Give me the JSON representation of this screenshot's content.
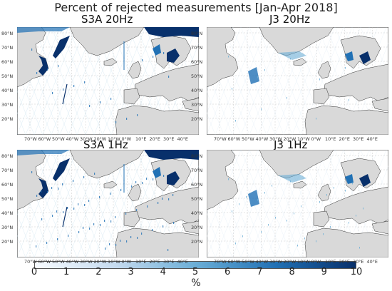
{
  "title": "Percent of rejected measurements [Jan-Apr 2018]",
  "panels": [
    {
      "name": "S3A 20Hz",
      "rejection_level": "high"
    },
    {
      "name": "J3 20Hz",
      "rejection_level": "low"
    },
    {
      "name": "S3A 1Hz",
      "rejection_level": "high"
    },
    {
      "name": "J3 1Hz",
      "rejection_level": "low"
    }
  ],
  "lat_labels": [
    "80°N",
    "70°N",
    "60°N",
    "50°N",
    "40°N",
    "30°N",
    "20°N"
  ],
  "lon_labels": [
    "70°W",
    "60°W",
    "50°W",
    "40°W",
    "30°W",
    "20°W",
    "10°W",
    "0°W",
    "10°E",
    "20°E",
    "30°E",
    "40°E"
  ],
  "colorbar": {
    "min": 0,
    "max": 10,
    "ticks": [
      "0",
      "1",
      "2",
      "3",
      "4",
      "5",
      "6",
      "7",
      "8",
      "9",
      "10"
    ],
    "unit": "%",
    "colors": [
      "#f7fbff",
      "#c6dbef",
      "#6baed6",
      "#2171b5",
      "#08306b"
    ]
  },
  "land_color": "#d9d9d9",
  "ocean_color": "#ffffff"
}
